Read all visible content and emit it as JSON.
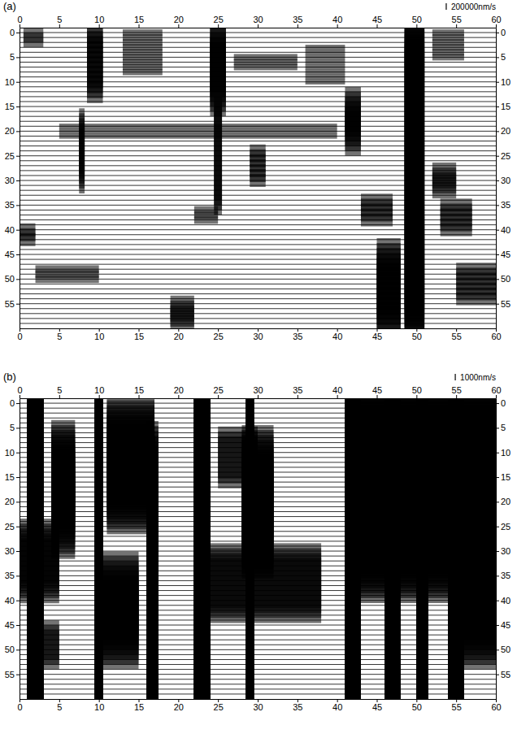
{
  "chart_data": [
    {
      "type": "seismogram",
      "label": "(a)",
      "xlim": [
        0,
        60
      ],
      "xticks": [
        0,
        5,
        10,
        15,
        20,
        25,
        30,
        35,
        40,
        45,
        50,
        55,
        60
      ],
      "ylim": [
        -1,
        60
      ],
      "yticks": [
        0,
        5,
        10,
        15,
        20,
        25,
        30,
        35,
        40,
        45,
        50,
        55
      ],
      "traces": [
        0,
        1,
        2,
        3,
        4,
        5,
        6,
        7,
        8,
        9,
        10,
        11,
        12,
        13,
        14,
        15,
        16,
        17,
        18,
        19,
        20,
        21,
        22,
        23,
        24,
        25,
        26,
        27,
        28,
        29,
        30,
        31,
        32,
        33,
        34,
        35,
        36,
        37,
        38,
        39,
        40,
        41,
        42,
        43,
        44,
        45,
        46,
        47,
        48,
        49,
        50,
        51,
        52,
        53,
        54,
        55,
        56,
        57,
        58,
        59
      ],
      "scale_bar": {
        "value": 200000,
        "label": "200000nm/s"
      },
      "events": [
        {
          "traces": [
            0,
            2
          ],
          "start": 0.5,
          "end": 3,
          "amplitude": 150000
        },
        {
          "traces": [
            0,
            12
          ],
          "start": 8.5,
          "end": 10.5,
          "amplitude": 350000
        },
        {
          "traces": [
            0,
            8
          ],
          "start": 13,
          "end": 18,
          "amplitude": 100000
        },
        {
          "traces": [
            18,
            30
          ],
          "start": 7.5,
          "end": 8.2,
          "amplitude": 400000
        },
        {
          "traces": [
            0,
            14
          ],
          "start": 24,
          "end": 26,
          "amplitude": 450000
        },
        {
          "traces": [
            15,
            35
          ],
          "start": 24.5,
          "end": 25.5,
          "amplitude": 300000
        },
        {
          "traces": [
            5,
            7
          ],
          "start": 27,
          "end": 35,
          "amplitude": 100000
        },
        {
          "traces": [
            19,
            21
          ],
          "start": 5,
          "end": 40,
          "amplitude": 80000
        },
        {
          "traces": [
            14,
            22
          ],
          "start": 41,
          "end": 43,
          "amplitude": 450000
        },
        {
          "traces": [
            0,
            59
          ],
          "start": 48.5,
          "end": 51,
          "amplitude": 700000
        },
        {
          "traces": [
            45,
            59
          ],
          "start": 45,
          "end": 48,
          "amplitude": 500000
        },
        {
          "traces": [
            55,
            59
          ],
          "start": 19,
          "end": 22,
          "amplitude": 250000
        },
        {
          "traces": [
            48,
            50
          ],
          "start": 2,
          "end": 10,
          "amplitude": 120000
        },
        {
          "traces": [
            40,
            42
          ],
          "start": 0,
          "end": 2,
          "amplitude": 200000
        },
        {
          "traces": [
            28,
            32
          ],
          "start": 52,
          "end": 55,
          "amplitude": 250000
        },
        {
          "traces": [
            35,
            40
          ],
          "start": 53,
          "end": 57,
          "amplitude": 200000
        },
        {
          "traces": [
            48,
            54
          ],
          "start": 55,
          "end": 60,
          "amplitude": 200000
        },
        {
          "traces": [
            34,
            38
          ],
          "start": 43,
          "end": 47,
          "amplitude": 200000
        },
        {
          "traces": [
            0,
            5
          ],
          "start": 52,
          "end": 56,
          "amplitude": 100000
        },
        {
          "traces": [
            24,
            30
          ],
          "start": 29,
          "end": 31,
          "amplitude": 200000
        },
        {
          "traces": [
            3,
            10
          ],
          "start": 36,
          "end": 41,
          "amplitude": 80000
        },
        {
          "traces": [
            36,
            38
          ],
          "start": 22,
          "end": 25,
          "amplitude": 120000
        }
      ]
    },
    {
      "type": "seismogram",
      "label": "(b)",
      "xlim": [
        0,
        60
      ],
      "xticks": [
        0,
        5,
        10,
        15,
        20,
        25,
        30,
        35,
        40,
        45,
        50,
        55,
        60
      ],
      "ylim": [
        -1,
        60
      ],
      "yticks": [
        0,
        5,
        10,
        15,
        20,
        25,
        30,
        35,
        40,
        45,
        50,
        55
      ],
      "traces": [
        0,
        1,
        2,
        3,
        4,
        5,
        6,
        7,
        8,
        9,
        10,
        11,
        12,
        13,
        14,
        15,
        16,
        17,
        18,
        19,
        20,
        21,
        22,
        23,
        24,
        25,
        26,
        27,
        28,
        29,
        30,
        31,
        32,
        33,
        34,
        35,
        36,
        37,
        38,
        39,
        40,
        41,
        42,
        43,
        44,
        45,
        46,
        47,
        48,
        49,
        50,
        51,
        52,
        53,
        54,
        55,
        56,
        57,
        58,
        59
      ],
      "scale_bar": {
        "value": 1000,
        "label": "1000nm/s"
      },
      "events": [
        {
          "traces": [
            0,
            59
          ],
          "start": 1,
          "end": 3,
          "amplitude": 30000
        },
        {
          "traces": [
            0,
            59
          ],
          "start": 9.5,
          "end": 10.5,
          "amplitude": 30000
        },
        {
          "traces": [
            10,
            25
          ],
          "start": 4,
          "end": 7,
          "amplitude": 5000
        },
        {
          "traces": [
            30,
            59
          ],
          "start": 16,
          "end": 17.5,
          "amplitude": 20000
        },
        {
          "traces": [
            0,
            59
          ],
          "start": 22,
          "end": 24,
          "amplitude": 25000
        },
        {
          "traces": [
            0,
            59
          ],
          "start": 28.5,
          "end": 29.5,
          "amplitude": 20000
        },
        {
          "traces": [
            15,
            25
          ],
          "start": 28,
          "end": 32,
          "amplitude": 8000
        },
        {
          "traces": [
            35,
            38
          ],
          "start": 22,
          "end": 38,
          "amplitude": 5000
        },
        {
          "traces": [
            0,
            59
          ],
          "start": 41,
          "end": 43,
          "amplitude": 40000
        },
        {
          "traces": [
            0,
            59
          ],
          "start": 46,
          "end": 48,
          "amplitude": 40000
        },
        {
          "traces": [
            0,
            59
          ],
          "start": 50,
          "end": 51.5,
          "amplitude": 30000
        },
        {
          "traces": [
            0,
            59
          ],
          "start": 54,
          "end": 56,
          "amplitude": 40000
        },
        {
          "traces": [
            5,
            30
          ],
          "start": 43,
          "end": 60,
          "amplitude": 8000
        },
        {
          "traces": [
            38,
            46
          ],
          "start": 10,
          "end": 15,
          "amplitude": 6000
        },
        {
          "traces": [
            40,
            46
          ],
          "start": 55,
          "end": 60,
          "amplitude": 6000
        },
        {
          "traces": [
            30,
            34
          ],
          "start": 0,
          "end": 5,
          "amplitude": 5000
        },
        {
          "traces": [
            5,
            20
          ],
          "start": 11,
          "end": 17,
          "amplitude": 5000
        },
        {
          "traces": [
            10,
            12
          ],
          "start": 25,
          "end": 30,
          "amplitude": 4000
        },
        {
          "traces": [
            48,
            50
          ],
          "start": 1,
          "end": 5,
          "amplitude": 3000
        }
      ]
    }
  ]
}
